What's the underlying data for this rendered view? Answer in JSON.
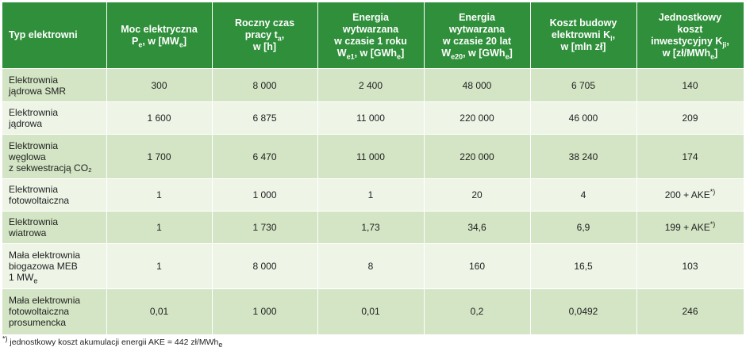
{
  "headers": {
    "type": "Typ elektrowni",
    "power": {
      "pre": "Moc elektryczna",
      "l2": "P",
      "s1": "e",
      "m": ", w [MW",
      "s2": "e",
      "post": "]"
    },
    "time": {
      "pre": "Roczny czas",
      "l2": "pracy t",
      "s1": "a",
      "post": ",",
      "l3": "w [h]"
    },
    "e1": {
      "l1": "Energia",
      "l2": "wytwarzana",
      "l3": "w czasie 1 roku",
      "l4": "W",
      "s1": "e1",
      "m": ", w [GWh",
      "s2": "e",
      "post": "]"
    },
    "e20": {
      "l1": "Energia",
      "l2": "wytwarzana",
      "l3": "w czasie 20 lat",
      "l4": "W",
      "s1": "e20",
      "m": ", w [GWh",
      "s2": "e",
      "post": "]"
    },
    "cost": {
      "l1": "Koszt budowy",
      "l2": "elektrowni K",
      "s1": "i",
      "post": ",",
      "l3": "w [mln zł]"
    },
    "unit": {
      "l1": "Jednostkowy",
      "l2": "koszt",
      "l3": "inwestycyjny K",
      "s1": "ji",
      "post": ",",
      "l4": "w [zł/MWh",
      "s2": "e",
      "post2": "]"
    }
  },
  "rows": [
    {
      "name": [
        "Elektrownia",
        "jądrowa SMR"
      ],
      "power": "300",
      "hours": "8 000",
      "e1": "2 400",
      "e20": "48 000",
      "cost": "6 705",
      "unit": "140",
      "unit_sup": ""
    },
    {
      "name": [
        "Elektrownia",
        "jądrowa"
      ],
      "power": "1 600",
      "hours": "6 875",
      "e1": "11 000",
      "e20": "220 000",
      "cost": "46 000",
      "unit": "209",
      "unit_sup": ""
    },
    {
      "name": [
        "Elektrownia",
        "węglowa",
        "z sekwestracją CO₂"
      ],
      "power": "1 700",
      "hours": "6 470",
      "e1": "11 000",
      "e20": "220 000",
      "cost": "38 240",
      "unit": "174",
      "unit_sup": ""
    },
    {
      "name": [
        "Elektrownia",
        "fotowoltaiczna"
      ],
      "power": "1",
      "hours": "1 000",
      "e1": "1",
      "e20": "20",
      "cost": "4",
      "unit": "200 + AKE",
      "unit_sup": "*)"
    },
    {
      "name": [
        "Elektrownia",
        "wiatrowa"
      ],
      "power": "1",
      "hours": "1 730",
      "e1": "1,73",
      "e20": "34,6",
      "cost": "6,9",
      "unit": "199 + AKE",
      "unit_sup": "*)"
    },
    {
      "name": [
        "Mała elektrownia",
        "biogazowa MEB",
        "1 MW"
      ],
      "name_sub": "e",
      "power": "1",
      "hours": "8 000",
      "e1": "8",
      "e20": "160",
      "cost": "16,5",
      "unit": "103",
      "unit_sup": ""
    },
    {
      "name": [
        "Mała elektrownia",
        "fotowoltaiczna",
        "prosumencka"
      ],
      "power": "0,01",
      "hours": "1 000",
      "e1": "0,01",
      "e20": "0,2",
      "cost": "0,0492",
      "unit": "246",
      "unit_sup": ""
    }
  ],
  "footnote": {
    "sup": "*)",
    "text": " jednostkowy koszt akumulacji energii AKE = 442 zł/MWh",
    "sub": "e"
  },
  "colors": {
    "header": "#2f8f3a",
    "row_dark": "#d3e5c4",
    "row_light": "#eef5e7"
  }
}
